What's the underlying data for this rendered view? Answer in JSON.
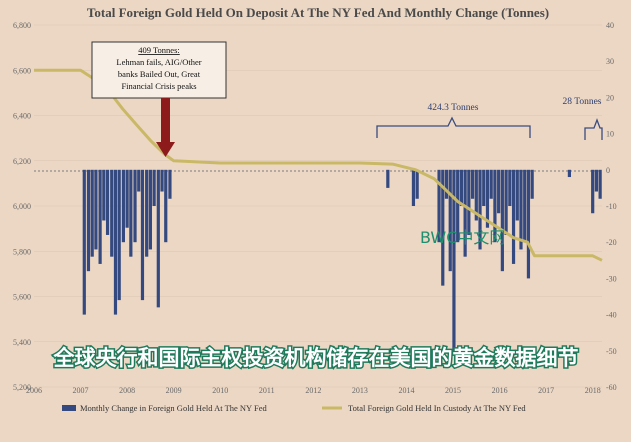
{
  "chart_data": {
    "type": "bar+line",
    "title": "Total Foreign Gold Held On Deposit At The NY Fed And Monthly Change (Tonnes)",
    "x_ticks": [
      "2006",
      "2007",
      "2008",
      "2009",
      "2010",
      "2011",
      "2012",
      "2013",
      "2014",
      "2015",
      "2016",
      "2017",
      "2018"
    ],
    "xlim": [
      2006.0,
      2018.2
    ],
    "left_axis": {
      "ticks": [
        "6,800",
        "6,600",
        "6,400",
        "6,200",
        "6,000",
        "5,800",
        "5,600",
        "5,400",
        "5,200"
      ],
      "ylim": [
        5200,
        6800
      ]
    },
    "right_axis": {
      "ticks": [
        "40",
        "30",
        "20",
        "10",
        "0",
        "-10",
        "-20",
        "-30",
        "-40",
        "-50",
        "-60"
      ],
      "ylim": [
        -60,
        40
      ]
    },
    "series": [
      {
        "name": "Monthly Change in Foreign Gold Held At The NY Fed",
        "kind": "bar",
        "axis": "right",
        "color": "#34497f",
        "x": [
          2007.08,
          2007.17,
          2007.25,
          2007.33,
          2007.42,
          2007.5,
          2007.58,
          2007.67,
          2007.75,
          2007.83,
          2007.92,
          2008.0,
          2008.08,
          2008.17,
          2008.25,
          2008.33,
          2008.42,
          2008.5,
          2008.58,
          2008.67,
          2008.75,
          2008.83,
          2008.92,
          2013.6,
          2014.15,
          2014.23,
          2014.7,
          2014.78,
          2014.86,
          2014.94,
          2015.02,
          2015.1,
          2015.18,
          2015.26,
          2015.34,
          2015.42,
          2015.5,
          2015.58,
          2015.66,
          2015.74,
          2015.82,
          2015.9,
          2015.98,
          2016.06,
          2016.14,
          2016.22,
          2016.3,
          2016.38,
          2016.46,
          2016.54,
          2016.62,
          2016.7,
          2017.5,
          2018.0,
          2018.08,
          2018.16
        ],
        "values": [
          -40,
          -28,
          -24,
          -22,
          -26,
          -14,
          -18,
          -24,
          -40,
          -36,
          -20,
          -16,
          -24,
          -20,
          -6,
          -36,
          -24,
          -22,
          -10,
          -38,
          -6,
          -20,
          -8,
          -5,
          -10,
          -8,
          -20,
          -32,
          -8,
          -28,
          -50,
          -20,
          -10,
          -24,
          -18,
          -8,
          -14,
          -22,
          -10,
          -16,
          -8,
          -20,
          -12,
          -28,
          -18,
          -10,
          -26,
          -14,
          -22,
          -20,
          -30,
          -8,
          -2,
          -12,
          -6,
          -8
        ]
      },
      {
        "name": "Total Foreign Gold Held In Custody At The NY Fed",
        "kind": "line",
        "axis": "left",
        "color": "#c9b866",
        "x": [
          2006.0,
          2007.0,
          2007.3,
          2007.6,
          2007.9,
          2008.2,
          2008.5,
          2008.8,
          2009.0,
          2010.0,
          2011.0,
          2012.0,
          2013.0,
          2013.7,
          2014.2,
          2014.6,
          2014.9,
          2015.1,
          2015.4,
          2015.7,
          2016.0,
          2016.3,
          2016.6,
          2016.75,
          2017.0,
          2018.0,
          2018.2
        ],
        "y": [
          6600,
          6600,
          6560,
          6510,
          6430,
          6360,
          6290,
          6230,
          6200,
          6190,
          6190,
          6190,
          6190,
          6185,
          6160,
          6120,
          6060,
          6020,
          5980,
          5940,
          5900,
          5860,
          5840,
          5780,
          5780,
          5780,
          5760
        ]
      }
    ],
    "legend_position": "bottom",
    "annotations": {
      "callout": [
        "409 Tonnes:",
        "Lehman fails, AIG/Other",
        "banks Bailed Out, Great",
        "Financial Crisis peaks"
      ],
      "bracket_1": "424.3 Tonnes",
      "bracket_2": "28 Tonnes"
    },
    "watermark": "BWC中文网",
    "overlay_caption": "全球央行和国际主权投资机构储存在美国的黄金数据细节"
  }
}
